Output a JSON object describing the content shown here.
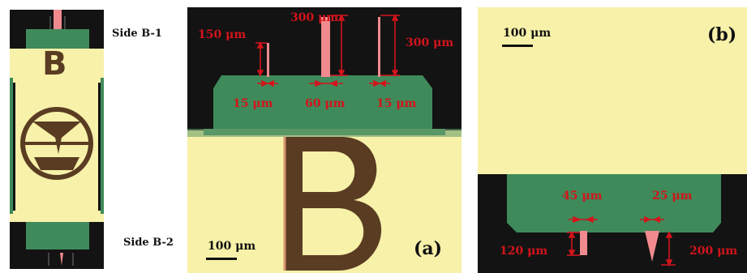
{
  "colors": {
    "gold": "#f7f1a9",
    "green": "#3f8a5a",
    "dark": "#131313",
    "red": "#d3141c",
    "pink": "#f08a8e",
    "brown": "#5a3c22"
  },
  "overview": {
    "side_top": "Side B-1",
    "side_bottom": "Side B-2",
    "letter": "B"
  },
  "panel_a": {
    "label": "(a)",
    "scalebar": "100 μm",
    "dims": {
      "len1": "150 μm",
      "len2": "300 μm",
      "len3": "300 μm",
      "w1": "15 μm",
      "w2": "60 μm",
      "w3": "15 μm"
    },
    "letter": "B"
  },
  "panel_b": {
    "label": "(b)",
    "scalebar": "100 μm",
    "dims": {
      "w1": "45 μm",
      "w2": "25 μm",
      "len1": "120 μm",
      "len2": "200 μm"
    }
  }
}
